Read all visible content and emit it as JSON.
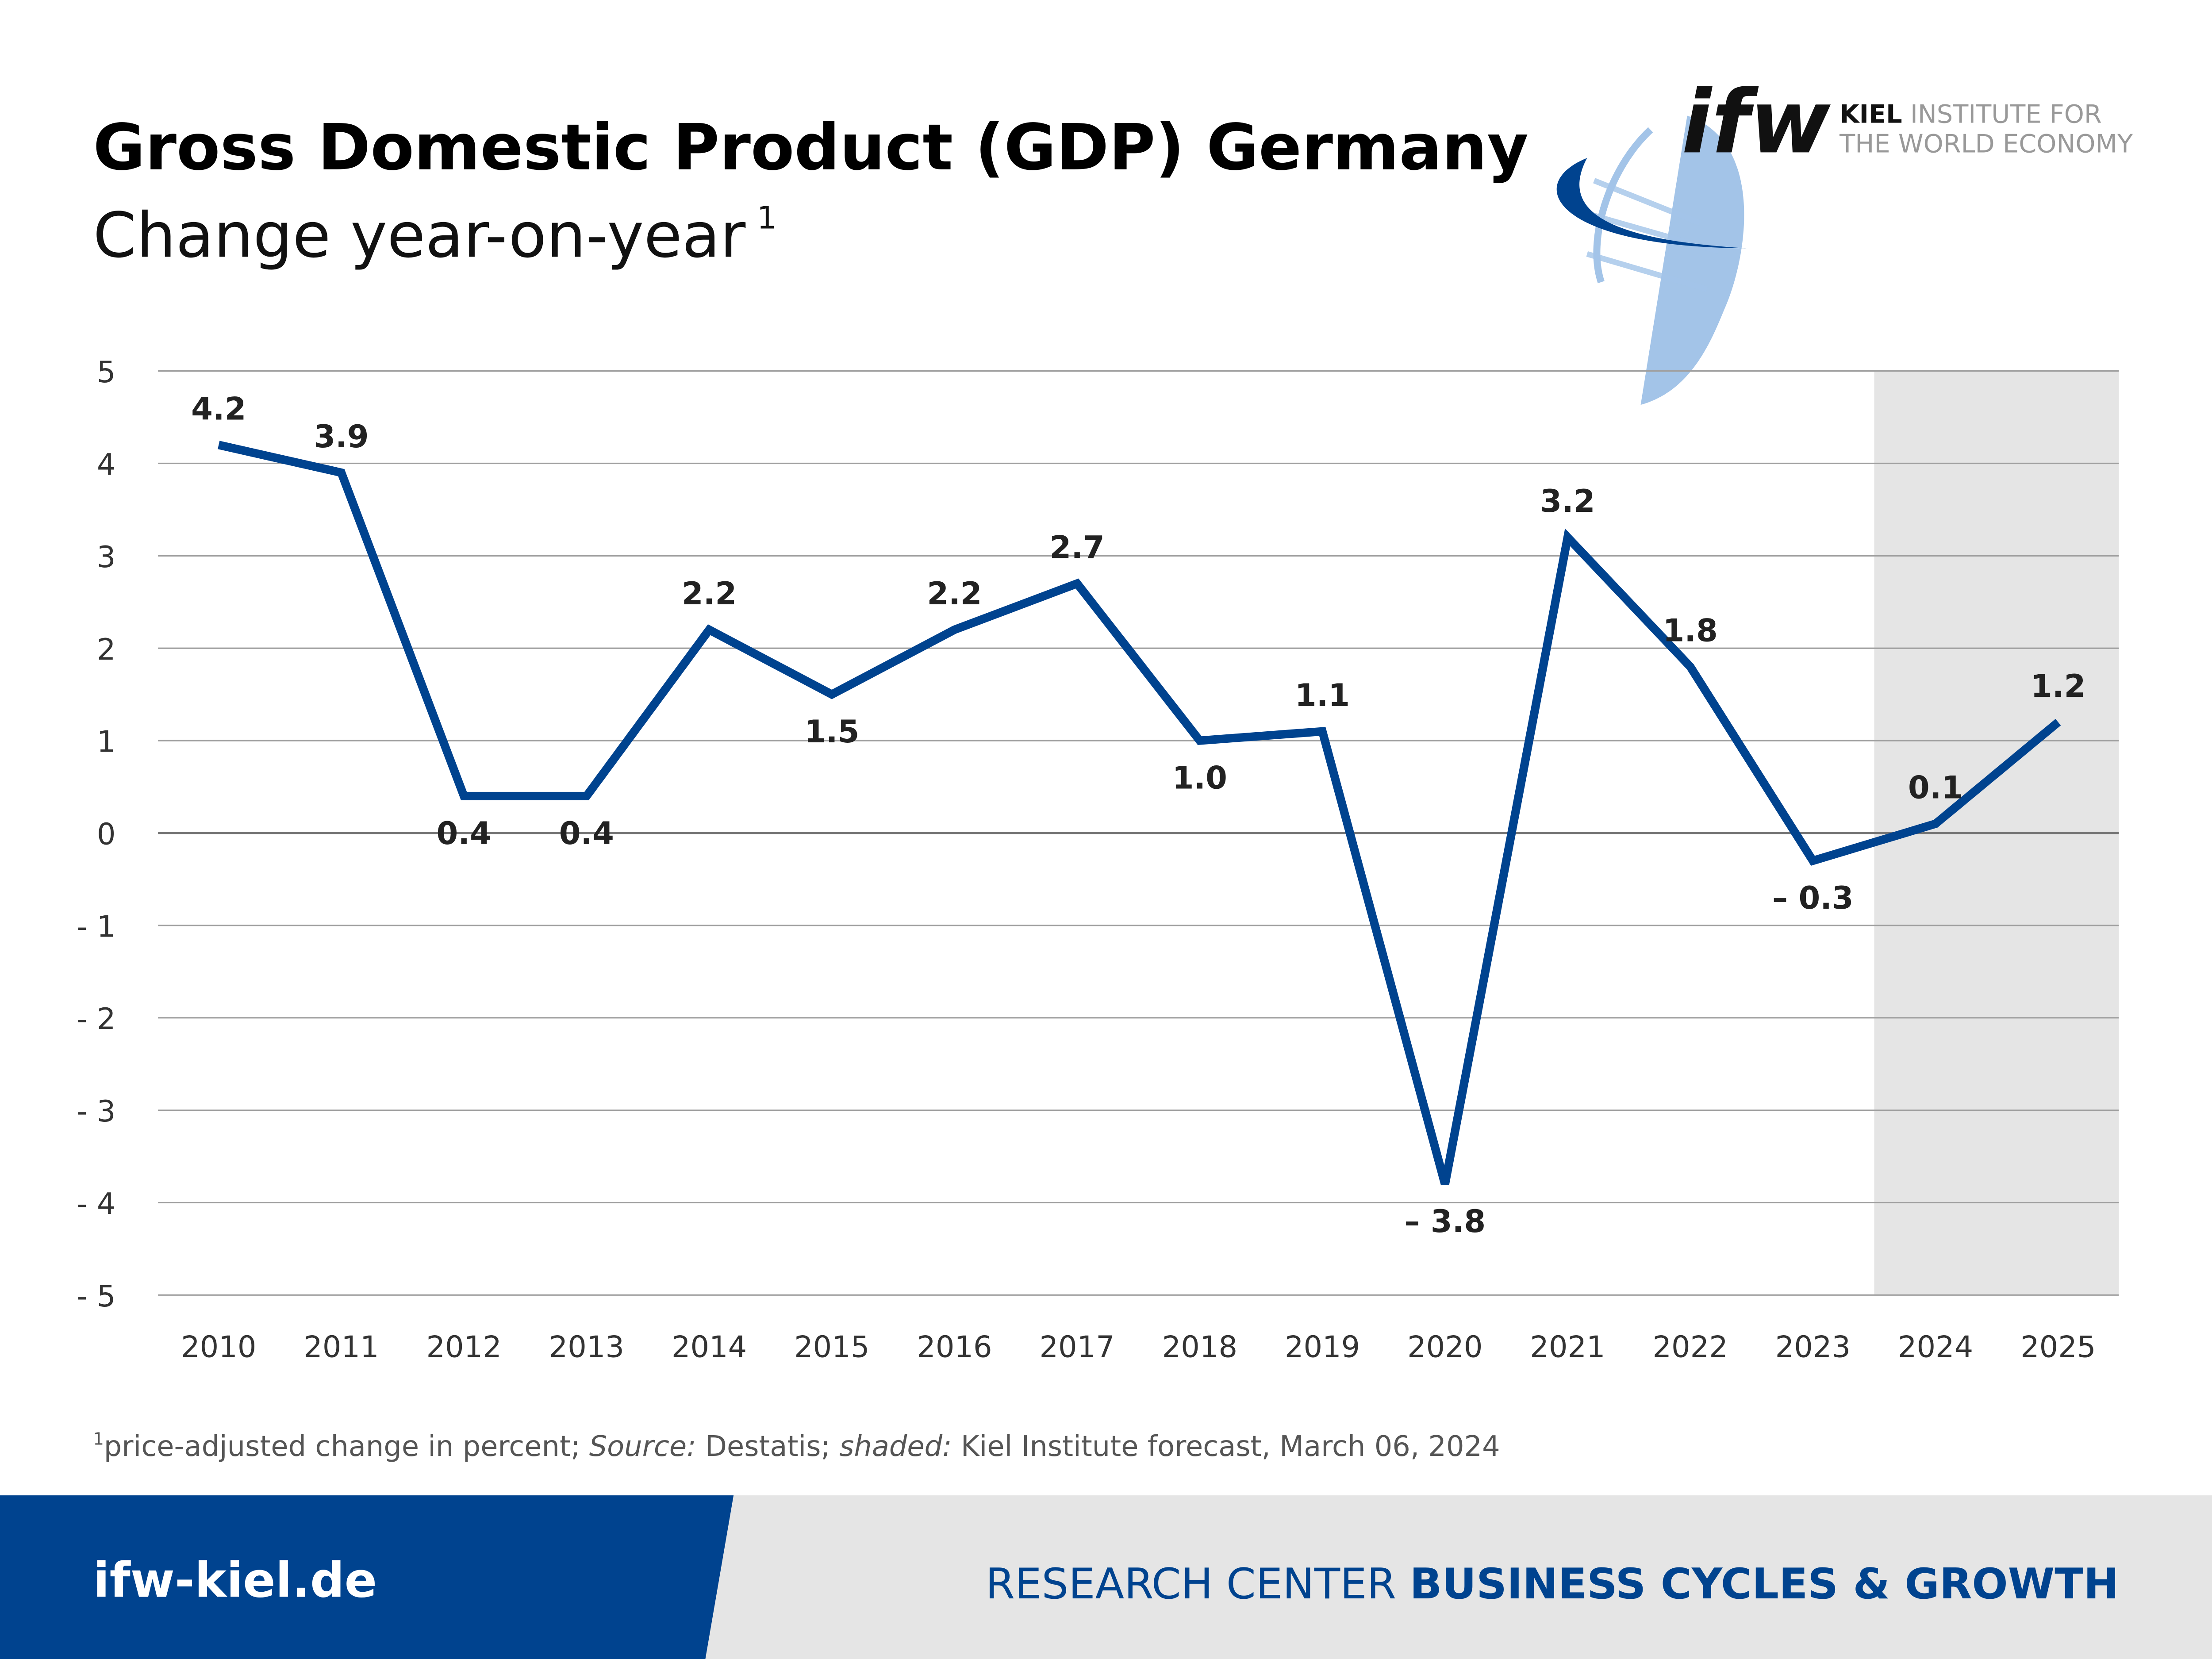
{
  "header": {
    "title": "Gross Domestic Product (GDP) Germany",
    "subtitle": "Change year-on-year",
    "subtitle_footnote_mark": "1"
  },
  "logo": {
    "wordmark": "ifw",
    "line1_bold": "KIEL",
    "line1_rest": "INSTITUTE FOR",
    "line2": "THE WORLD ECONOMY"
  },
  "footnote": {
    "mark": "1",
    "text1": "price-adjusted change in percent; ",
    "source_label": "Source:",
    "text2": " Destatis; ",
    "shaded_label": "shaded:",
    "text3": " Kiel Institute forecast, March 06, 2024"
  },
  "footer": {
    "website": "ifw-kiel.de",
    "research_center": "RESEARCH CENTER",
    "center_name": "BUSINESS CYCLES & GROWTH"
  },
  "colors": {
    "line": "#00438f",
    "brand_blue": "#00438f",
    "footer_gray": "#e5e5e5",
    "forecast_shade": "#e5e5e5",
    "grid": "#a0a0a0",
    "text": "#222222"
  },
  "chart_data": {
    "type": "line",
    "title": "Gross Domestic Product (GDP) Germany",
    "subtitle": "Change year-on-year",
    "x": [
      "2010",
      "2011",
      "2012",
      "2013",
      "2014",
      "2015",
      "2016",
      "2017",
      "2018",
      "2019",
      "2020",
      "2021",
      "2022",
      "2023",
      "2024",
      "2025"
    ],
    "values": [
      4.2,
      3.9,
      0.4,
      0.4,
      2.2,
      1.5,
      2.2,
      2.7,
      1.0,
      1.1,
      -3.8,
      3.2,
      1.8,
      -0.3,
      0.1,
      1.2
    ],
    "data_labels": [
      "4.2",
      "3.9",
      "0.4",
      "0.4",
      "2.2",
      "1.5",
      "2.2",
      "2.7",
      "1.0",
      "1.1",
      "– 3.8",
      "3.2",
      "1.8",
      "– 0.3",
      "0.1",
      "1.2"
    ],
    "y_ticks": [
      "5",
      "4",
      "3",
      "2",
      "1",
      "0",
      "- 1",
      "- 2",
      "- 3",
      "- 4",
      "- 5"
    ],
    "ylim": [
      -5,
      5
    ],
    "grid": true,
    "forecast_shaded": [
      "2024",
      "2025"
    ]
  }
}
